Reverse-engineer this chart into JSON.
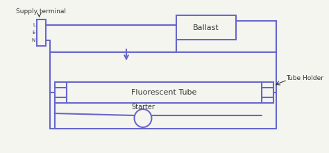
{
  "bg_color": "#f5f5f0",
  "line_color": "#6666cc",
  "line_width": 1.5,
  "title": "",
  "supply_terminal_label": "Supply terminal",
  "supply_terminal_lines": [
    "L",
    "E",
    "N"
  ],
  "ballast_label": "Ballast",
  "tube_label": "Fluorescent Tube",
  "starter_label": "Starter",
  "tube_holder_label": "Tube Holder"
}
